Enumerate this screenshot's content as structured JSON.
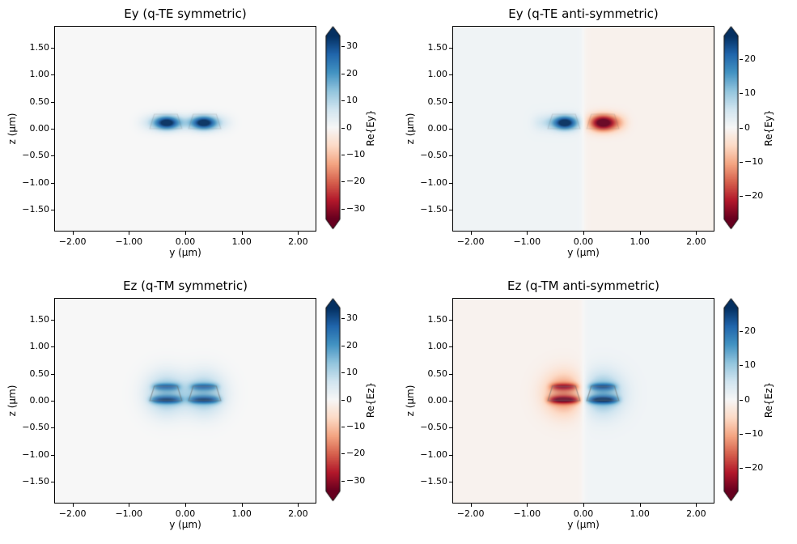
{
  "figure": {
    "background": "#ffffff",
    "colormap": {
      "name": "RdBu",
      "stops": [
        "#67001f",
        "#b2182b",
        "#d6604d",
        "#f4a582",
        "#fddbc7",
        "#f7f7f7",
        "#d1e5f0",
        "#92c5de",
        "#4393c3",
        "#2166ac",
        "#053061"
      ]
    }
  },
  "chart_data": [
    {
      "type": "heatmap",
      "title": "Ey (q-TE symmetric)",
      "xlabel": "y (µm)",
      "ylabel": "z (µm)",
      "xlim": [
        -2.31,
        2.31
      ],
      "ylim": [
        -1.89,
        1.89
      ],
      "grid": false,
      "xticks": [
        {
          "value": -2,
          "label": "−2.00"
        },
        {
          "value": -1,
          "label": "−1.00"
        },
        {
          "value": 0,
          "label": "0.00"
        },
        {
          "value": 1,
          "label": "1.00"
        },
        {
          "value": 2,
          "label": "2.00"
        }
      ],
      "yticks": [
        {
          "value": 1.5,
          "label": "1.50"
        },
        {
          "value": 1.0,
          "label": "1.00"
        },
        {
          "value": 0.5,
          "label": "0.50"
        },
        {
          "value": 0.0,
          "label": "0.00"
        },
        {
          "value": -0.5,
          "label": "−0.50"
        },
        {
          "value": -1.0,
          "label": "−1.00"
        },
        {
          "value": -1.5,
          "label": "−1.50"
        }
      ],
      "colorbar": {
        "label": "Re{Ey}",
        "vmin": -34,
        "vmax": 34,
        "extend": "both",
        "ticks": [
          {
            "value": 30,
            "label": "30"
          },
          {
            "value": 20,
            "label": "20"
          },
          {
            "value": 10,
            "label": "10"
          },
          {
            "value": 0,
            "label": "0"
          },
          {
            "value": -10,
            "label": "−10"
          },
          {
            "value": -20,
            "label": "−20"
          },
          {
            "value": -30,
            "label": "−30"
          }
        ]
      },
      "background_tint": {
        "left": 0,
        "right": 0
      },
      "field_lobes": [
        {
          "y": -0.33,
          "z": 0.11,
          "wy": 0.15,
          "wz": 0.085,
          "py": 1,
          "pz": 1,
          "amp": 33
        },
        {
          "y": 0.33,
          "z": 0.11,
          "wy": 0.15,
          "wz": 0.085,
          "py": 1,
          "pz": 1,
          "amp": 33
        },
        {
          "y": 0.0,
          "z": 0.11,
          "wy": 0.55,
          "wz": 0.1,
          "py": 3,
          "pz": 1,
          "amp": 7
        }
      ],
      "structure_overlay": {
        "alpha": 0.2,
        "polygons": [
          [
            [
              -0.63,
              0.0
            ],
            [
              -0.06,
              0.0
            ],
            [
              -0.14,
              0.27
            ],
            [
              -0.55,
              0.27
            ]
          ],
          [
            [
              0.06,
              0.0
            ],
            [
              0.63,
              0.0
            ],
            [
              0.55,
              0.27
            ],
            [
              0.14,
              0.27
            ]
          ]
        ]
      }
    },
    {
      "type": "heatmap",
      "title": "Ey (q-TE anti-symmetric)",
      "xlabel": "y (µm)",
      "ylabel": "z (µm)",
      "xlim": [
        -2.31,
        2.31
      ],
      "ylim": [
        -1.89,
        1.89
      ],
      "grid": false,
      "xticks": [
        {
          "value": -2,
          "label": "−2.00"
        },
        {
          "value": -1,
          "label": "−1.00"
        },
        {
          "value": 0,
          "label": "0.00"
        },
        {
          "value": 1,
          "label": "1.00"
        },
        {
          "value": 2,
          "label": "2.00"
        }
      ],
      "yticks": [
        {
          "value": 1.5,
          "label": "1.50"
        },
        {
          "value": 1.0,
          "label": "1.00"
        },
        {
          "value": 0.5,
          "label": "0.50"
        },
        {
          "value": 0.0,
          "label": "0.00"
        },
        {
          "value": -0.5,
          "label": "−0.50"
        },
        {
          "value": -1.0,
          "label": "−1.00"
        },
        {
          "value": -1.5,
          "label": "−1.50"
        }
      ],
      "colorbar": {
        "label": "Re{Ey}",
        "vmin": -27,
        "vmax": 27,
        "extend": "both",
        "ticks": [
          {
            "value": 20,
            "label": "20"
          },
          {
            "value": 10,
            "label": "10"
          },
          {
            "value": 0,
            "label": "0"
          },
          {
            "value": -10,
            "label": "−10"
          },
          {
            "value": -20,
            "label": "−20"
          }
        ]
      },
      "background_tint": {
        "left": 1.2,
        "right": -1.2
      },
      "field_lobes": [
        {
          "y": -0.33,
          "z": 0.11,
          "wy": 0.14,
          "wz": 0.085,
          "py": 1,
          "pz": 1,
          "amp": 26
        },
        {
          "y": -0.33,
          "z": 0.11,
          "wy": 0.38,
          "wz": 0.1,
          "py": 3,
          "pz": 1,
          "amp": 5
        },
        {
          "y": 0.35,
          "z": 0.11,
          "wy": 0.17,
          "wz": 0.1,
          "py": 1,
          "pz": 1,
          "amp": -27
        },
        {
          "y": 0.35,
          "z": 0.11,
          "wy": 0.3,
          "wz": 0.11,
          "py": 3,
          "pz": 1,
          "amp": -4
        }
      ],
      "structure_overlay": {
        "alpha": 0.2,
        "polygons": [
          [
            [
              -0.63,
              0.0
            ],
            [
              -0.06,
              0.0
            ],
            [
              -0.14,
              0.27
            ],
            [
              -0.55,
              0.27
            ]
          ],
          [
            [
              0.06,
              0.0
            ],
            [
              0.63,
              0.0
            ],
            [
              0.55,
              0.27
            ],
            [
              0.14,
              0.27
            ]
          ]
        ]
      }
    },
    {
      "type": "heatmap",
      "title": "Ez (q-TM symmetric)",
      "xlabel": "y (µm)",
      "ylabel": "z (µm)",
      "xlim": [
        -2.31,
        2.31
      ],
      "ylim": [
        -1.89,
        1.89
      ],
      "grid": false,
      "xticks": [
        {
          "value": -2,
          "label": "−2.00"
        },
        {
          "value": -1,
          "label": "−1.00"
        },
        {
          "value": 0,
          "label": "0.00"
        },
        {
          "value": 1,
          "label": "1.00"
        },
        {
          "value": 2,
          "label": "2.00"
        }
      ],
      "yticks": [
        {
          "value": 1.5,
          "label": "1.50"
        },
        {
          "value": 1.0,
          "label": "1.00"
        },
        {
          "value": 0.5,
          "label": "0.50"
        },
        {
          "value": 0.0,
          "label": "0.00"
        },
        {
          "value": -0.5,
          "label": "−0.50"
        },
        {
          "value": -1.0,
          "label": "−1.00"
        },
        {
          "value": -1.5,
          "label": "−1.50"
        }
      ],
      "colorbar": {
        "label": "Re{Ez}",
        "vmin": -34,
        "vmax": 34,
        "extend": "both",
        "ticks": [
          {
            "value": 30,
            "label": "30"
          },
          {
            "value": 20,
            "label": "20"
          },
          {
            "value": 10,
            "label": "10"
          },
          {
            "value": 0,
            "label": "0"
          },
          {
            "value": -10,
            "label": "−10"
          },
          {
            "value": -20,
            "label": "−20"
          },
          {
            "value": -30,
            "label": "−30"
          }
        ]
      },
      "background_tint": {
        "left": 0,
        "right": 0
      },
      "field_lobes": [
        {
          "y": -0.34,
          "z": 0.13,
          "wy": 0.24,
          "wz": 0.26,
          "py": 1,
          "pz": 1,
          "amp": 15
        },
        {
          "y": -0.34,
          "z": 0.015,
          "wy": 0.2,
          "wz": 0.05,
          "py": 2,
          "pz": 1,
          "amp": 19
        },
        {
          "y": -0.34,
          "z": 0.26,
          "wy": 0.17,
          "wz": 0.045,
          "py": 2,
          "pz": 1,
          "amp": 14
        },
        {
          "y": 0.34,
          "z": 0.13,
          "wy": 0.24,
          "wz": 0.26,
          "py": 1,
          "pz": 1,
          "amp": 15
        },
        {
          "y": 0.34,
          "z": 0.015,
          "wy": 0.2,
          "wz": 0.05,
          "py": 2,
          "pz": 1,
          "amp": 19
        },
        {
          "y": 0.34,
          "z": 0.26,
          "wy": 0.17,
          "wz": 0.045,
          "py": 2,
          "pz": 1,
          "amp": 14
        }
      ],
      "structure_overlay": {
        "alpha": 0.55,
        "polygons": [
          [
            [
              -0.63,
              0.0
            ],
            [
              -0.06,
              0.0
            ],
            [
              -0.14,
              0.27
            ],
            [
              -0.55,
              0.27
            ]
          ],
          [
            [
              0.06,
              0.0
            ],
            [
              0.63,
              0.0
            ],
            [
              0.55,
              0.27
            ],
            [
              0.14,
              0.27
            ]
          ]
        ]
      }
    },
    {
      "type": "heatmap",
      "title": "Ez (q-TM anti-symmetric)",
      "xlabel": "y (µm)",
      "ylabel": "z (µm)",
      "xlim": [
        -2.31,
        2.31
      ],
      "ylim": [
        -1.89,
        1.89
      ],
      "grid": false,
      "xticks": [
        {
          "value": -2,
          "label": "−2.00"
        },
        {
          "value": -1,
          "label": "−1.00"
        },
        {
          "value": 0,
          "label": "0.00"
        },
        {
          "value": 1,
          "label": "1.00"
        },
        {
          "value": 2,
          "label": "2.00"
        }
      ],
      "yticks": [
        {
          "value": 1.5,
          "label": "1.50"
        },
        {
          "value": 1.0,
          "label": "1.00"
        },
        {
          "value": 0.5,
          "label": "0.50"
        },
        {
          "value": 0.0,
          "label": "0.00"
        },
        {
          "value": -0.5,
          "label": "−0.50"
        },
        {
          "value": -1.0,
          "label": "−1.00"
        },
        {
          "value": -1.5,
          "label": "−1.50"
        }
      ],
      "colorbar": {
        "label": "Re{Ez}",
        "vmin": -27,
        "vmax": 27,
        "extend": "both",
        "ticks": [
          {
            "value": 20,
            "label": "20"
          },
          {
            "value": 10,
            "label": "10"
          },
          {
            "value": 0,
            "label": "0"
          },
          {
            "value": -10,
            "label": "−10"
          },
          {
            "value": -20,
            "label": "−20"
          }
        ]
      },
      "background_tint": {
        "left": -1.0,
        "right": 1.0
      },
      "field_lobes": [
        {
          "y": -0.34,
          "z": 0.13,
          "wy": 0.24,
          "wz": 0.26,
          "py": 1,
          "pz": 1,
          "amp": -13
        },
        {
          "y": -0.34,
          "z": 0.015,
          "wy": 0.2,
          "wz": 0.05,
          "py": 2,
          "pz": 1,
          "amp": -17
        },
        {
          "y": -0.34,
          "z": 0.26,
          "wy": 0.17,
          "wz": 0.045,
          "py": 2,
          "pz": 1,
          "amp": -12
        },
        {
          "y": 0.34,
          "z": 0.13,
          "wy": 0.24,
          "wz": 0.26,
          "py": 1,
          "pz": 1,
          "amp": 13
        },
        {
          "y": 0.34,
          "z": 0.015,
          "wy": 0.2,
          "wz": 0.05,
          "py": 2,
          "pz": 1,
          "amp": 17
        },
        {
          "y": 0.34,
          "z": 0.26,
          "wy": 0.17,
          "wz": 0.045,
          "py": 2,
          "pz": 1,
          "amp": 12
        }
      ],
      "structure_overlay": {
        "alpha": 0.55,
        "polygons": [
          [
            [
              -0.63,
              0.0
            ],
            [
              -0.06,
              0.0
            ],
            [
              -0.14,
              0.27
            ],
            [
              -0.55,
              0.27
            ]
          ],
          [
            [
              0.06,
              0.0
            ],
            [
              0.63,
              0.0
            ],
            [
              0.55,
              0.27
            ],
            [
              0.14,
              0.27
            ]
          ]
        ]
      }
    }
  ]
}
